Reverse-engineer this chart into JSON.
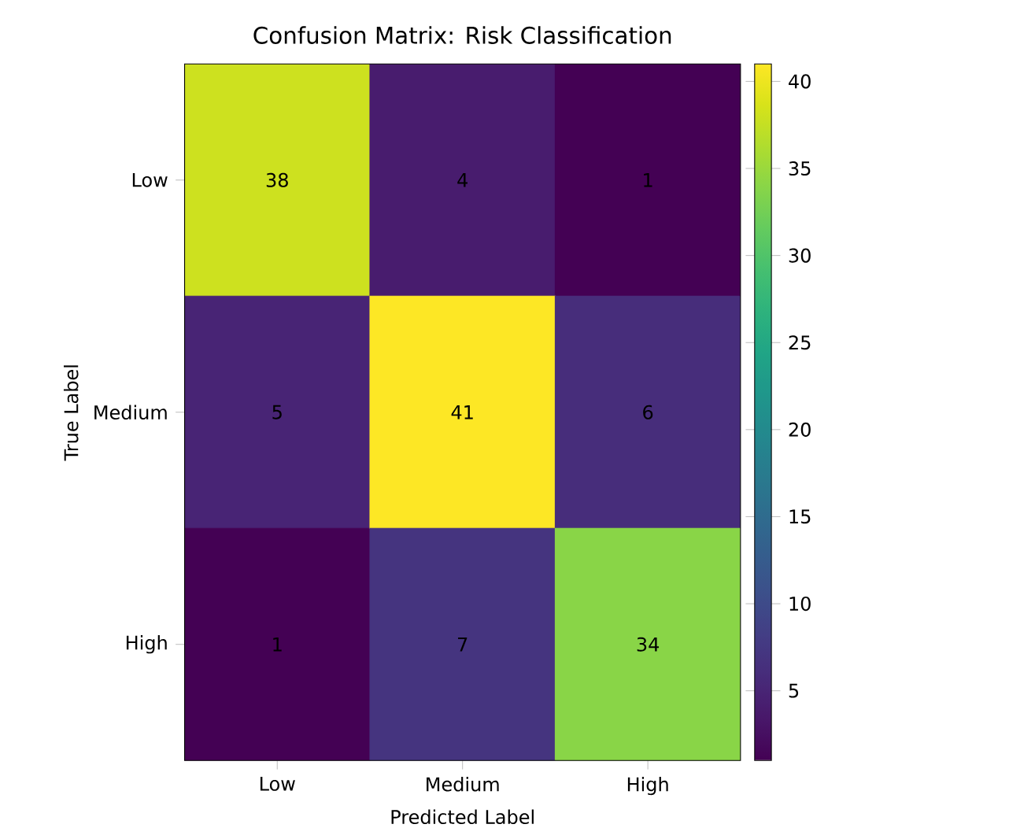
{
  "chart_data": {
    "type": "heatmap",
    "title": "Confusion Matrix: Risk Classification",
    "xlabel": "Predicted Label",
    "ylabel": "True Label",
    "categories": [
      "Low",
      "Medium",
      "High"
    ],
    "y_categories": [
      "Low",
      "Medium",
      "High"
    ],
    "cells": [
      [
        38,
        4,
        1
      ],
      [
        5,
        41,
        6
      ],
      [
        1,
        7,
        34
      ]
    ],
    "clim": [
      1,
      41
    ],
    "cticks": [
      5,
      10,
      15,
      20,
      25,
      30,
      35,
      40
    ],
    "data_labels": true
  }
}
